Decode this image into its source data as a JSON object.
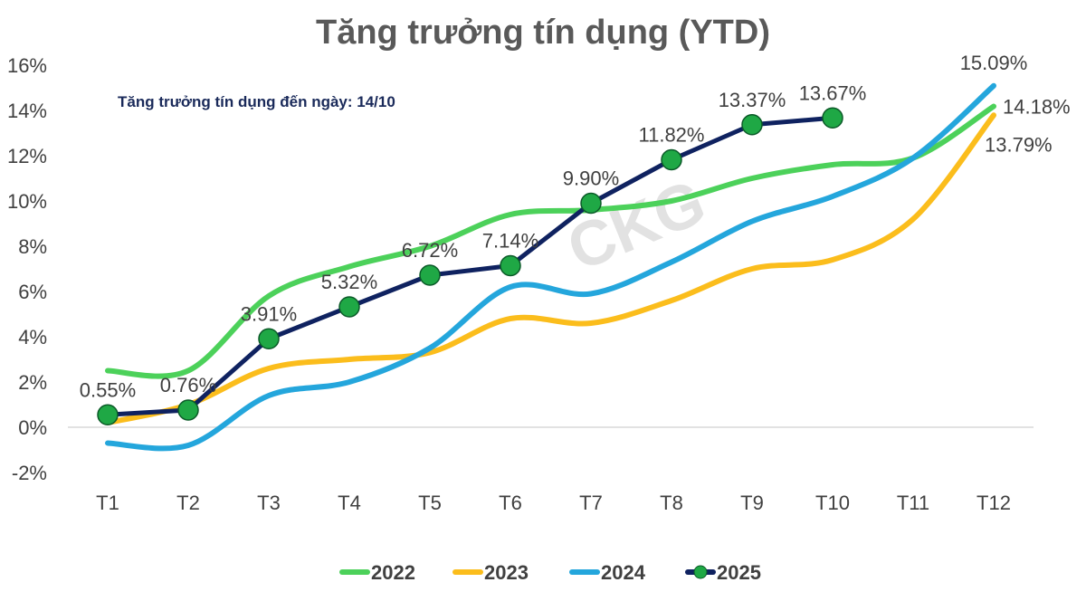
{
  "chart_data": {
    "type": "line",
    "title": "Tăng trưởng tín dụng (YTD)",
    "annotation": "Tăng trưởng tín dụng đến ngày: 14/10",
    "watermark": "CKG",
    "categories": [
      "T1",
      "T2",
      "T3",
      "T4",
      "T5",
      "T6",
      "T7",
      "T8",
      "T9",
      "T10",
      "T11",
      "T12"
    ],
    "ylim": [
      -2,
      16
    ],
    "yticks": [
      -2,
      0,
      2,
      4,
      6,
      8,
      10,
      12,
      14,
      16
    ],
    "ytick_labels": [
      "-2%",
      "0%",
      "2%",
      "4%",
      "6%",
      "8%",
      "10%",
      "12%",
      "14%",
      "16%"
    ],
    "grid": false,
    "legend_position": "bottom",
    "series": [
      {
        "name": "2022",
        "color": "#4cd15a",
        "smooth": true,
        "markers": false,
        "values": [
          2.5,
          2.5,
          5.8,
          7.1,
          8.0,
          9.4,
          9.6,
          10.0,
          11.0,
          11.6,
          11.9,
          14.18
        ],
        "labels": {
          "11": "14.18%"
        }
      },
      {
        "name": "2023",
        "color": "#fbbd1c",
        "smooth": true,
        "markers": false,
        "values": [
          0.2,
          1.0,
          2.6,
          3.0,
          3.3,
          4.8,
          4.6,
          5.6,
          7.0,
          7.4,
          9.2,
          13.79
        ],
        "labels": {
          "11": "13.79%"
        }
      },
      {
        "name": "2024",
        "color": "#24a6dc",
        "smooth": true,
        "markers": false,
        "values": [
          -0.7,
          -0.8,
          1.4,
          2.0,
          3.5,
          6.2,
          5.9,
          7.3,
          9.1,
          10.2,
          11.9,
          15.09
        ],
        "labels": {
          "11": "15.09%"
        }
      },
      {
        "name": "2025",
        "color": "#0f2260",
        "marker_color": "#1fa845",
        "smooth": false,
        "markers": true,
        "values": [
          0.55,
          0.76,
          3.91,
          5.32,
          6.72,
          7.14,
          9.9,
          11.82,
          13.37,
          13.67,
          null,
          null
        ],
        "labels": {
          "0": "0.55%",
          "1": "0.76%",
          "2": "3.91%",
          "3": "5.32%",
          "4": "6.72%",
          "5": "7.14%",
          "6": "9.90%",
          "7": "11.82%",
          "8": "13.37%",
          "9": "13.67%"
        }
      }
    ]
  }
}
